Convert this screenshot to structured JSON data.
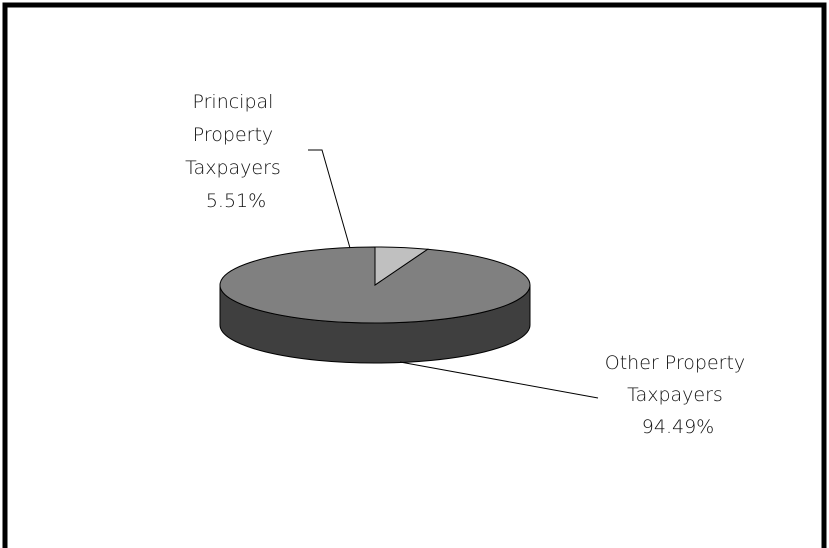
{
  "chart_data": {
    "type": "pie",
    "title": "",
    "style": "3d",
    "legend": "none",
    "slices": [
      {
        "name": "Principal Property Taxpayers",
        "label_lines": [
          "Principal",
          "Property",
          "Taxpayers",
          "5.51%"
        ],
        "value": 5.51,
        "color": "#c0c0c0",
        "side_color": "#8a8a8a"
      },
      {
        "name": "Other Property Taxpayers",
        "label_lines": [
          "Other Property",
          "Taxpayers",
          "94.49%"
        ],
        "value": 94.49,
        "color": "#808080",
        "side_color": "#3f3f3f"
      }
    ]
  }
}
